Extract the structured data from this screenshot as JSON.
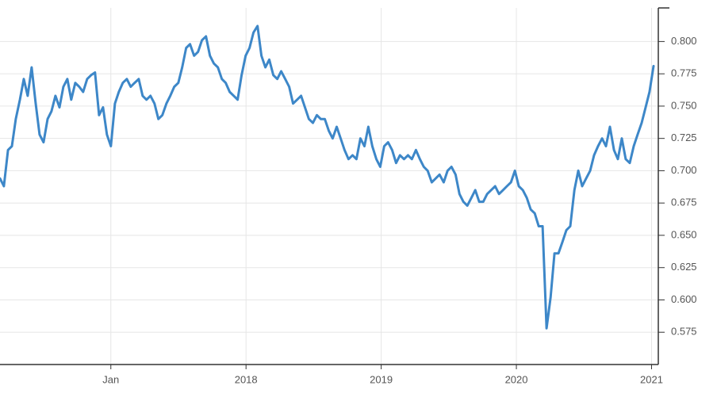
{
  "chart_data": {
    "type": "line",
    "color": "#3d87c8",
    "grid": true,
    "xlim": [
      2016.18,
      2021.05
    ],
    "xticks": [
      {
        "value": 2017,
        "label": "Jan"
      },
      2018,
      2019,
      2020,
      2021
    ],
    "ylim": [
      0.55,
      0.826
    ],
    "yticks": [
      {
        "value": 0.575,
        "label": "0.575"
      },
      {
        "value": 0.6,
        "label": "0.600"
      },
      {
        "value": 0.625,
        "label": "0.625"
      },
      {
        "value": 0.65,
        "label": "0.650"
      },
      {
        "value": 0.675,
        "label": "0.675"
      },
      {
        "value": 0.7,
        "label": "0.700"
      },
      {
        "value": 0.725,
        "label": "0.725"
      },
      {
        "value": 0.75,
        "label": "0.750"
      },
      {
        "value": 0.775,
        "label": "0.775"
      },
      {
        "value": 0.8,
        "label": "0.800"
      }
    ],
    "x": [
      2016.18,
      2016.209,
      2016.239,
      2016.268,
      2016.297,
      2016.327,
      2016.356,
      2016.385,
      2016.414,
      2016.444,
      2016.473,
      2016.502,
      2016.532,
      2016.561,
      2016.59,
      2016.62,
      2016.649,
      2016.678,
      2016.707,
      2016.737,
      2016.766,
      2016.795,
      2016.825,
      2016.854,
      2016.883,
      2016.913,
      2016.942,
      2016.971,
      2017.0,
      2017.03,
      2017.059,
      2017.088,
      2017.118,
      2017.147,
      2017.176,
      2017.206,
      2017.235,
      2017.264,
      2017.293,
      2017.323,
      2017.352,
      2017.381,
      2017.411,
      2017.44,
      2017.469,
      2017.499,
      2017.528,
      2017.557,
      2017.586,
      2017.616,
      2017.645,
      2017.674,
      2017.704,
      2017.733,
      2017.762,
      2017.792,
      2017.821,
      2017.85,
      2017.879,
      2017.909,
      2017.938,
      2017.967,
      2017.997,
      2018.026,
      2018.055,
      2018.085,
      2018.114,
      2018.143,
      2018.172,
      2018.202,
      2018.231,
      2018.26,
      2018.29,
      2018.319,
      2018.348,
      2018.378,
      2018.407,
      2018.436,
      2018.465,
      2018.495,
      2018.524,
      2018.553,
      2018.583,
      2018.612,
      2018.641,
      2018.671,
      2018.7,
      2018.729,
      2018.758,
      2018.788,
      2018.817,
      2018.846,
      2018.876,
      2018.905,
      2018.934,
      2018.964,
      2018.993,
      2019.022,
      2019.051,
      2019.081,
      2019.11,
      2019.139,
      2019.169,
      2019.198,
      2019.227,
      2019.257,
      2019.286,
      2019.315,
      2019.344,
      2019.374,
      2019.403,
      2019.432,
      2019.462,
      2019.491,
      2019.52,
      2019.55,
      2019.579,
      2019.608,
      2019.637,
      2019.667,
      2019.696,
      2019.725,
      2019.755,
      2019.784,
      2019.813,
      2019.843,
      2019.872,
      2019.901,
      2019.93,
      2019.96,
      2019.989,
      2020.018,
      2020.048,
      2020.077,
      2020.106,
      2020.136,
      2020.165,
      2020.194,
      2020.223,
      2020.253,
      2020.282,
      2020.311,
      2020.341,
      2020.37,
      2020.399,
      2020.429,
      2020.458,
      2020.487,
      2020.516,
      2020.546,
      2020.575,
      2020.604,
      2020.634,
      2020.663,
      2020.692,
      2020.722,
      2020.751,
      2020.78,
      2020.809,
      2020.839,
      2020.868,
      2020.897,
      2020.927,
      2020.956,
      2020.985,
      2021.015
    ],
    "values": [
      0.694,
      0.688,
      0.716,
      0.719,
      0.74,
      0.755,
      0.771,
      0.758,
      0.78,
      0.752,
      0.728,
      0.722,
      0.74,
      0.746,
      0.758,
      0.749,
      0.765,
      0.771,
      0.755,
      0.768,
      0.765,
      0.761,
      0.771,
      0.774,
      0.776,
      0.743,
      0.749,
      0.728,
      0.719,
      0.752,
      0.761,
      0.768,
      0.771,
      0.765,
      0.768,
      0.771,
      0.758,
      0.755,
      0.758,
      0.752,
      0.74,
      0.743,
      0.752,
      0.758,
      0.765,
      0.768,
      0.78,
      0.795,
      0.798,
      0.789,
      0.792,
      0.801,
      0.804,
      0.789,
      0.783,
      0.78,
      0.771,
      0.768,
      0.761,
      0.758,
      0.755,
      0.774,
      0.789,
      0.795,
      0.807,
      0.812,
      0.789,
      0.78,
      0.786,
      0.774,
      0.771,
      0.777,
      0.771,
      0.765,
      0.752,
      0.755,
      0.758,
      0.749,
      0.74,
      0.737,
      0.743,
      0.74,
      0.74,
      0.731,
      0.725,
      0.734,
      0.725,
      0.716,
      0.709,
      0.712,
      0.709,
      0.725,
      0.719,
      0.734,
      0.719,
      0.709,
      0.703,
      0.719,
      0.722,
      0.716,
      0.706,
      0.712,
      0.709,
      0.712,
      0.709,
      0.716,
      0.709,
      0.703,
      0.7,
      0.691,
      0.694,
      0.697,
      0.691,
      0.7,
      0.703,
      0.697,
      0.682,
      0.676,
      0.673,
      0.679,
      0.685,
      0.676,
      0.676,
      0.682,
      0.685,
      0.688,
      0.682,
      0.685,
      0.688,
      0.691,
      0.7,
      0.688,
      0.685,
      0.679,
      0.67,
      0.667,
      0.657,
      0.657,
      0.578,
      0.602,
      0.636,
      0.636,
      0.645,
      0.654,
      0.657,
      0.685,
      0.7,
      0.688,
      0.694,
      0.7,
      0.712,
      0.719,
      0.725,
      0.719,
      0.734,
      0.716,
      0.709,
      0.725,
      0.709,
      0.706,
      0.719,
      0.728,
      0.737,
      0.749,
      0.761,
      0.781
    ]
  }
}
